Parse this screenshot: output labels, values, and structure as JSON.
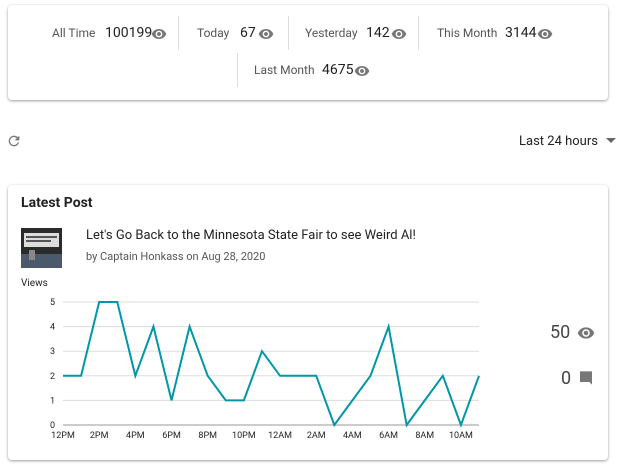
{
  "stats": [
    {
      "label": "All Time",
      "value": 100199
    },
    {
      "label": "Today",
      "value": 67
    },
    {
      "label": "Yesterday",
      "value": 142
    },
    {
      "label": "This Month",
      "value": 3144
    },
    {
      "label": "Last Month",
      "value": 4675
    }
  ],
  "range_select": "Last 24 hours",
  "latest_post": {
    "heading": "Latest Post",
    "title": "Let's Go Back to the Minnesota State Fair to see Weird Al!",
    "byline": "by Captain Honkass on Aug 28, 2020",
    "views": 50,
    "comments": 0
  },
  "chart_data": {
    "type": "line",
    "y_label": "Views",
    "color": "#0097a7",
    "grid": true,
    "categories": [
      "12PM",
      null,
      "2PM",
      null,
      "4PM",
      null,
      "6PM",
      null,
      "8PM",
      null,
      "10PM",
      null,
      "12AM",
      null,
      "2AM",
      null,
      "4AM",
      null,
      "6AM",
      null,
      "8AM",
      null,
      "10AM",
      null
    ],
    "values": [
      2,
      2,
      5,
      5,
      2,
      4,
      1,
      4,
      2,
      1,
      1,
      3,
      2,
      2,
      2,
      0,
      1,
      2,
      4,
      0,
      1,
      2,
      0,
      2
    ],
    "ylim": [
      0,
      5
    ],
    "yticks": [
      0,
      1,
      2,
      3,
      4,
      5
    ]
  }
}
